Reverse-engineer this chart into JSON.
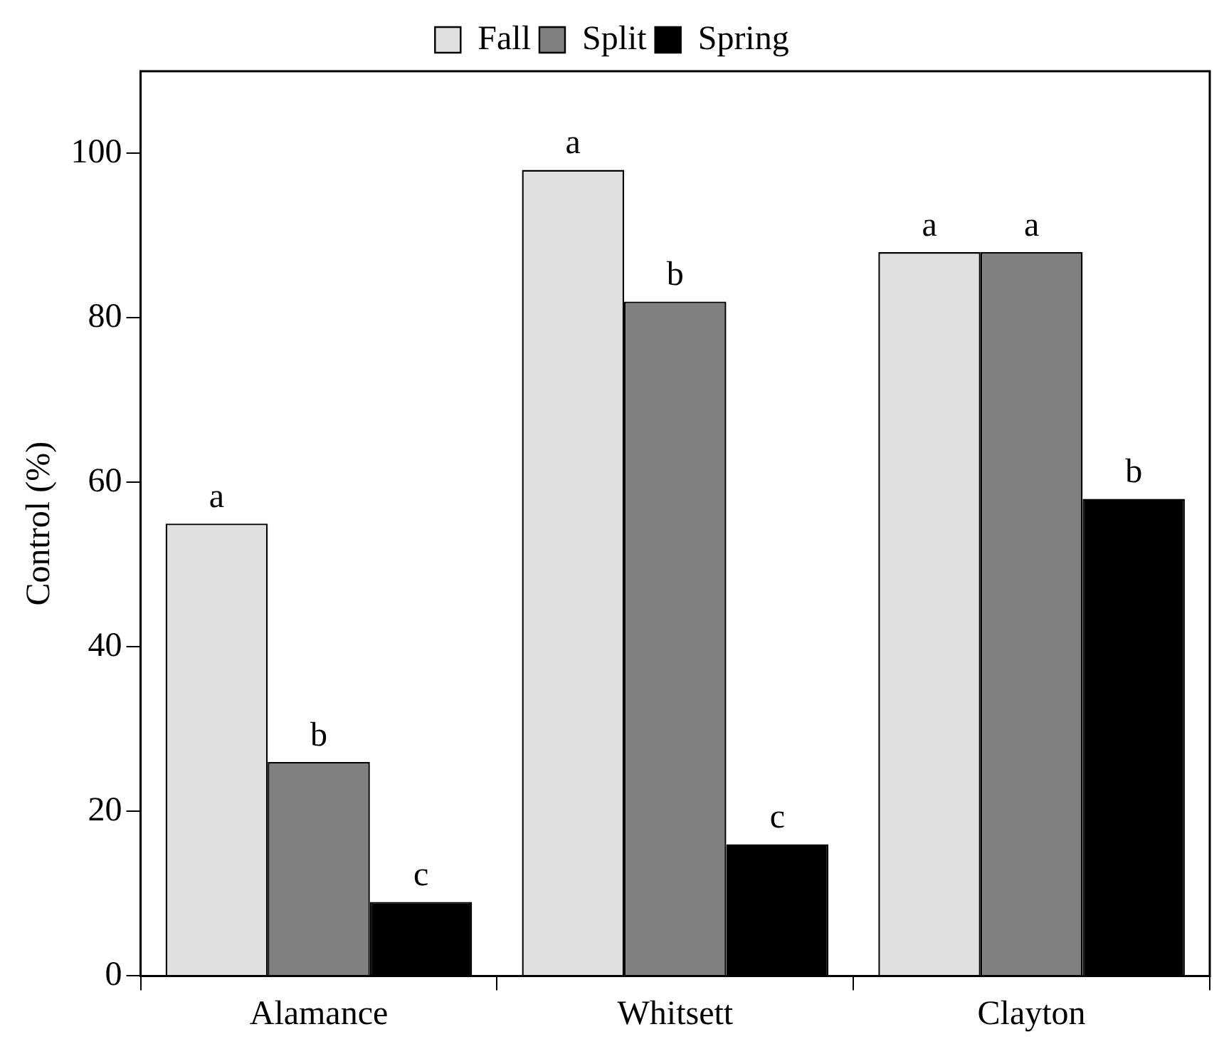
{
  "chart_data": {
    "type": "bar",
    "ylabel": "Control (%)",
    "categories": [
      "Alamance",
      "Whitsett",
      "Clayton"
    ],
    "series": [
      {
        "name": "Fall",
        "color": "#e0e0e0",
        "values": [
          55,
          98,
          88
        ],
        "value_labels": [
          "a",
          "a",
          "a"
        ]
      },
      {
        "name": "Split",
        "color": "#808080",
        "values": [
          26,
          82,
          88
        ],
        "value_labels": [
          "b",
          "b",
          "a"
        ]
      },
      {
        "name": "Spring",
        "color": "#000000",
        "values": [
          9,
          16,
          58
        ],
        "value_labels": [
          "c",
          "c",
          "b"
        ]
      }
    ],
    "ylim": [
      0,
      110
    ],
    "yticks": [
      0,
      20,
      40,
      60,
      80,
      100
    ],
    "grid": false,
    "legend": "top"
  }
}
